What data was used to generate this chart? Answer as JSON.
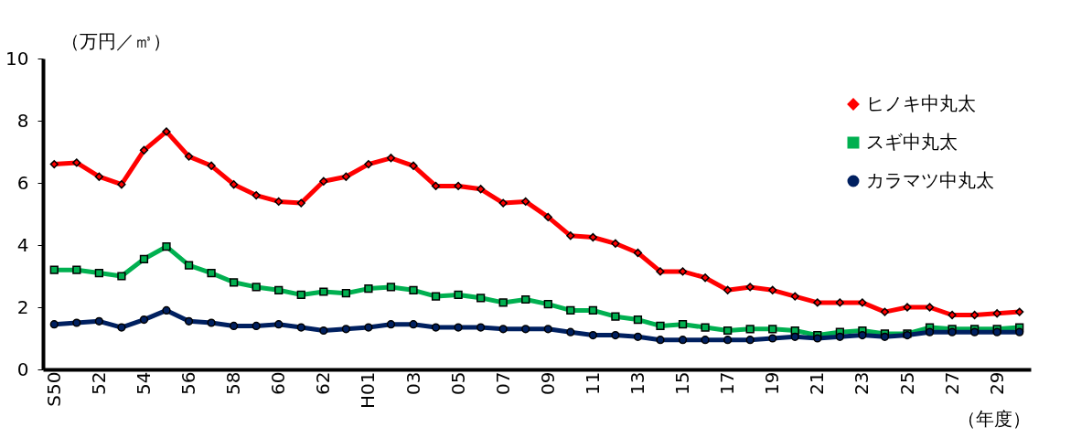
{
  "chart_data": {
    "type": "line",
    "ylabel": "（万円／㎥）",
    "xlabel": "（年度）",
    "categories": [
      "S50",
      null,
      "52",
      null,
      "54",
      null,
      "56",
      null,
      "58",
      null,
      "60",
      null,
      "62",
      null,
      "H01",
      null,
      "03",
      null,
      "05",
      null,
      "07",
      null,
      "09",
      null,
      "11",
      null,
      "13",
      null,
      "15",
      null,
      "17",
      null,
      "19",
      null,
      "21",
      null,
      "23",
      null,
      "25",
      null,
      "27",
      null,
      "29",
      null
    ],
    "ylim": [
      0,
      10
    ],
    "yticks": [
      0,
      2,
      4,
      6,
      8,
      10
    ],
    "grid": false,
    "legend": "top right",
    "line_style": "solid",
    "series": [
      {
        "name": "ヒノキ中丸太",
        "color": "#ff0000",
        "marker": "diamond",
        "values": [
          6.6,
          6.65,
          6.2,
          5.95,
          7.05,
          7.65,
          6.85,
          6.55,
          5.95,
          5.6,
          5.4,
          5.35,
          6.05,
          6.2,
          6.6,
          6.8,
          6.55,
          5.9,
          5.9,
          5.8,
          5.35,
          5.4,
          4.9,
          4.3,
          4.25,
          4.05,
          3.75,
          3.15,
          3.15,
          2.95,
          2.55,
          2.65,
          2.55,
          2.35,
          2.15,
          2.15,
          2.15,
          1.85,
          2.0,
          2.0,
          1.75,
          1.75,
          1.8,
          1.85
        ]
      },
      {
        "name": "スギ中丸太",
        "color": "#00b050",
        "marker": "square",
        "values": [
          3.2,
          3.2,
          3.1,
          3.0,
          3.55,
          3.95,
          3.35,
          3.1,
          2.8,
          2.65,
          2.55,
          2.4,
          2.5,
          2.45,
          2.6,
          2.65,
          2.55,
          2.35,
          2.4,
          2.3,
          2.15,
          2.25,
          2.1,
          1.9,
          1.9,
          1.7,
          1.6,
          1.4,
          1.45,
          1.35,
          1.25,
          1.3,
          1.3,
          1.25,
          1.1,
          1.2,
          1.25,
          1.15,
          1.15,
          1.35,
          1.3,
          1.3,
          1.3,
          1.35
        ]
      },
      {
        "name": "カラマツ中丸太",
        "color": "#002060",
        "marker": "circle",
        "values": [
          1.45,
          1.5,
          1.55,
          1.35,
          1.6,
          1.9,
          1.55,
          1.5,
          1.4,
          1.4,
          1.45,
          1.35,
          1.25,
          1.3,
          1.35,
          1.45,
          1.45,
          1.35,
          1.35,
          1.35,
          1.3,
          1.3,
          1.3,
          1.2,
          1.1,
          1.1,
          1.05,
          0.95,
          0.95,
          0.95,
          0.95,
          0.95,
          1.0,
          1.05,
          1.0,
          1.05,
          1.1,
          1.05,
          1.1,
          1.2,
          1.2,
          1.2,
          1.2,
          1.2
        ]
      }
    ]
  }
}
